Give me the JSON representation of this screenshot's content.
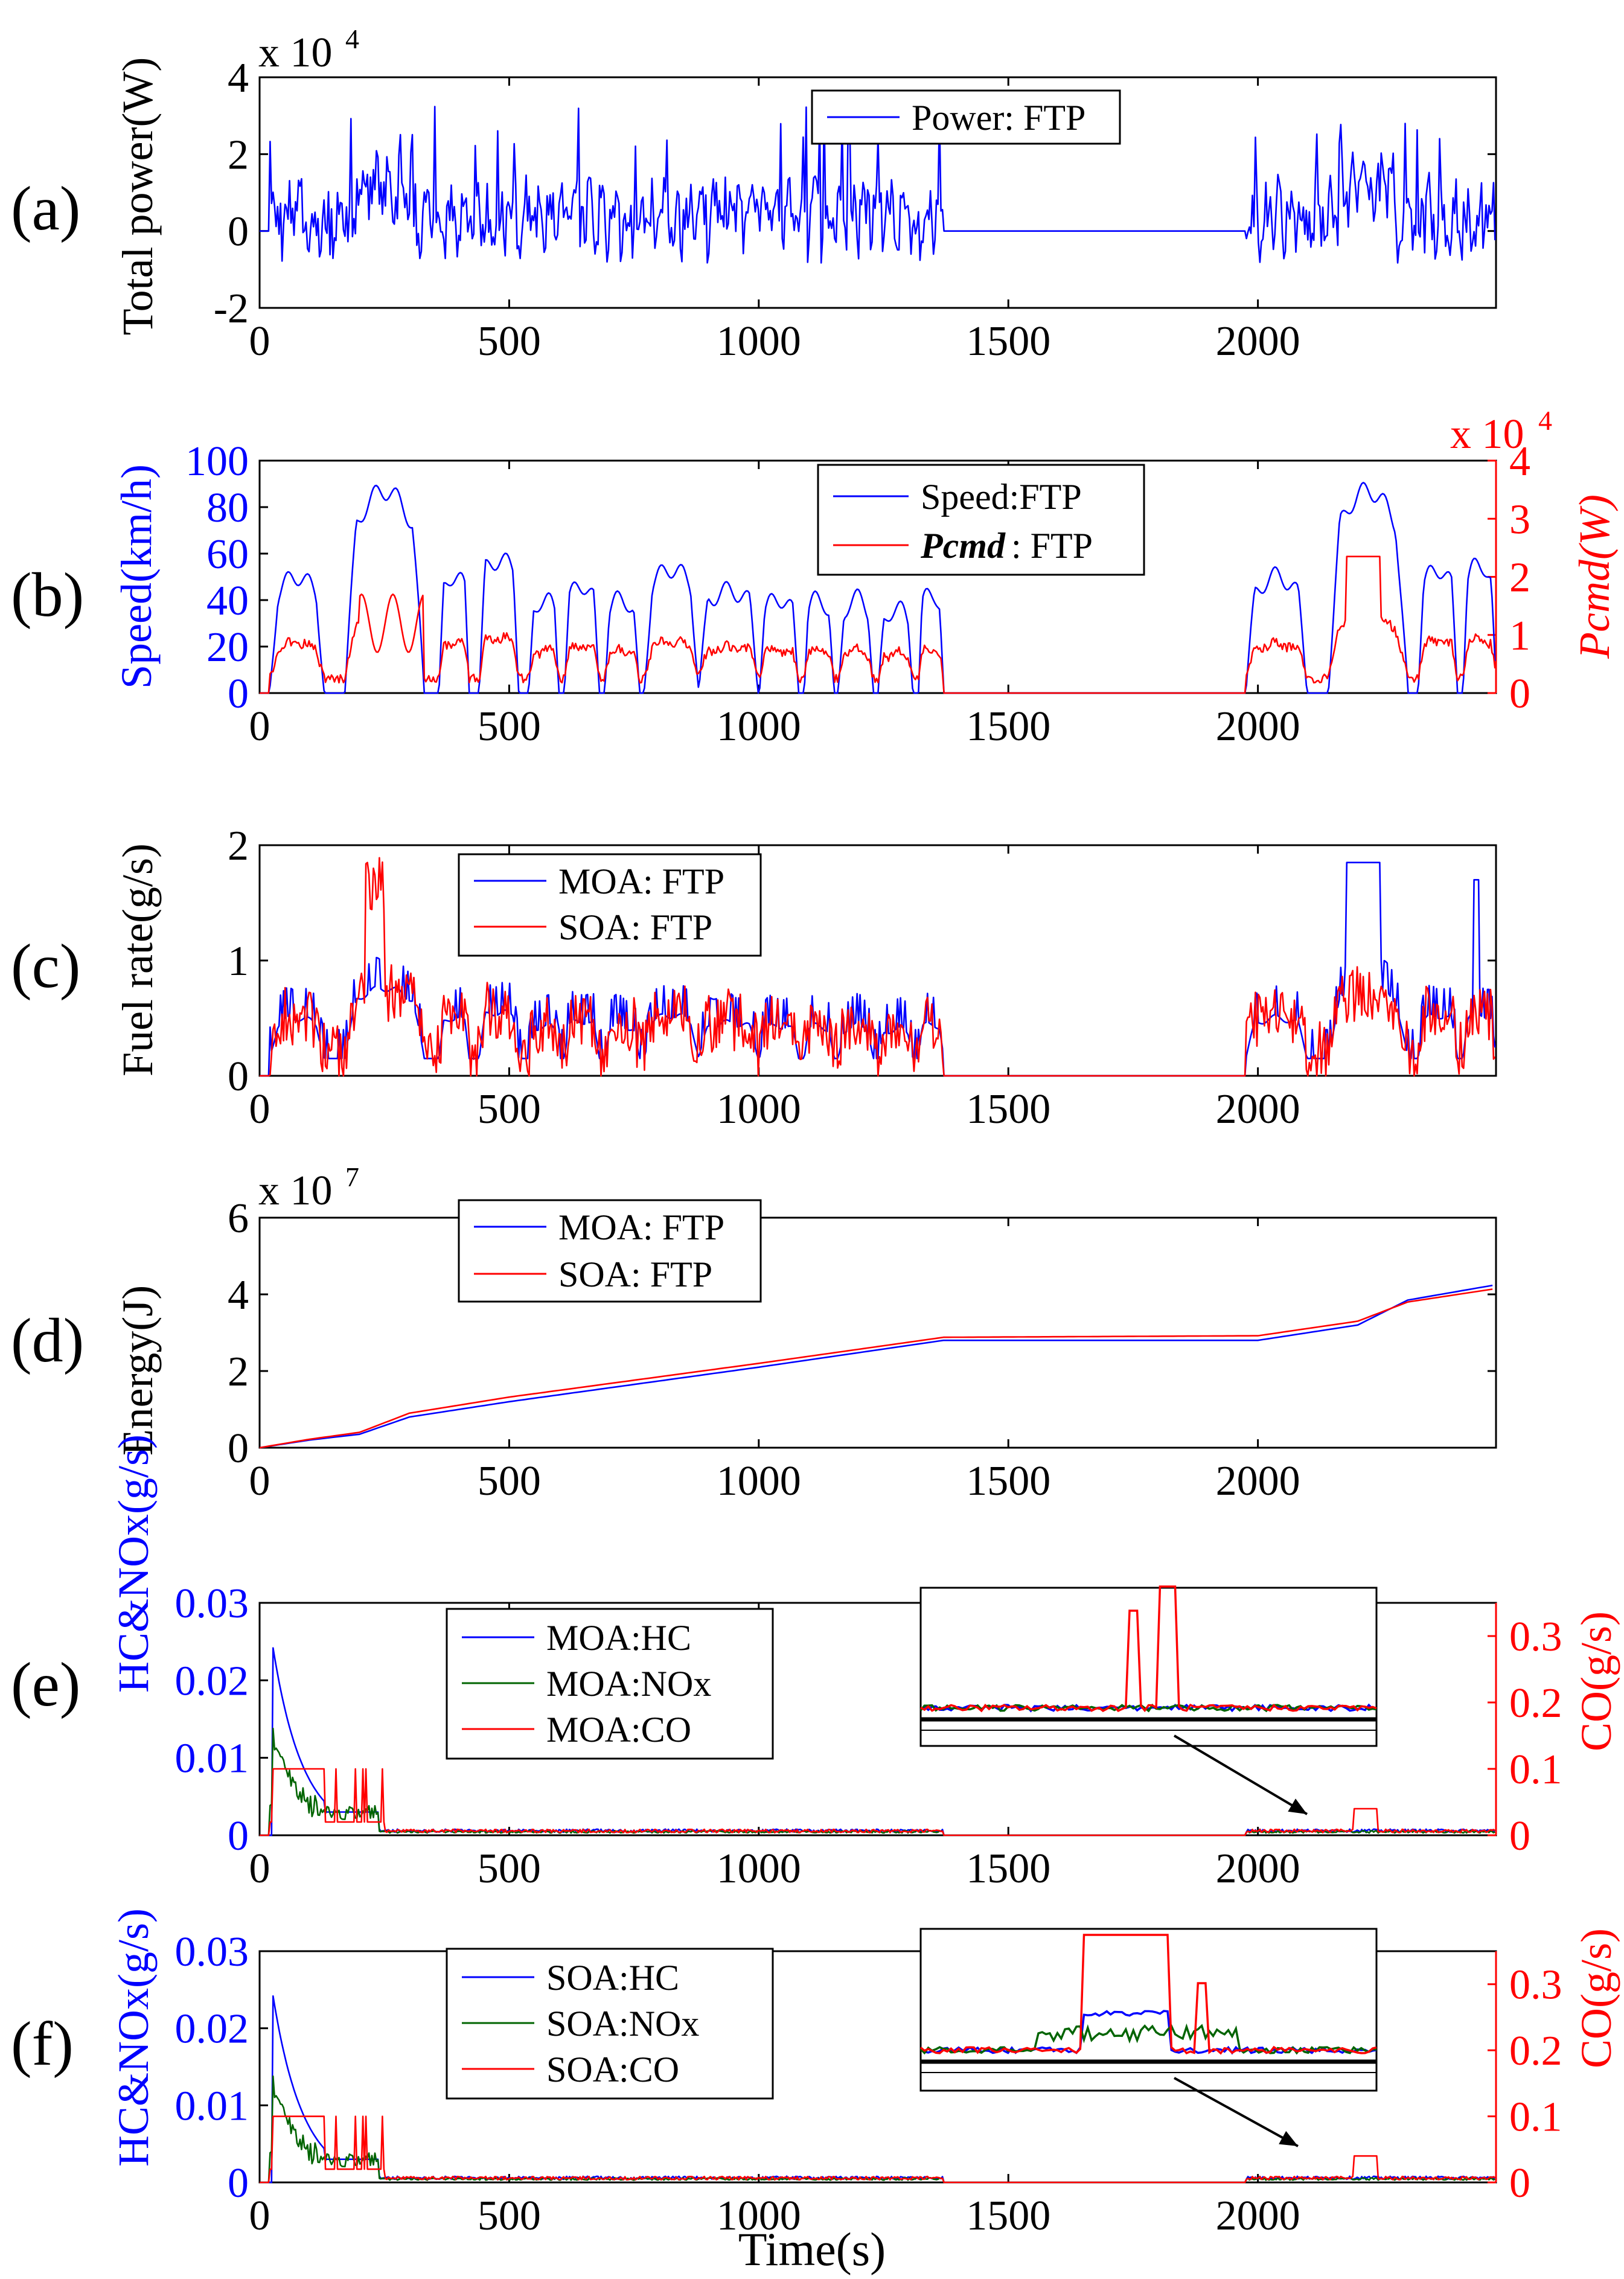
{
  "chart_data": [
    {
      "id": "a",
      "type": "line",
      "panel_label": "(a)",
      "ylabel": "Total power(W)",
      "y_multiplier": "x 10",
      "y_multiplier_exp": "4",
      "xlim": [
        0,
        2477
      ],
      "ylim": [
        -2,
        4
      ],
      "yticks": [
        -2,
        0,
        2,
        4
      ],
      "xticks": [
        0,
        500,
        1000,
        1500,
        2000
      ],
      "legend": [
        "Power: FTP"
      ],
      "series": [
        {
          "name": "Power: FTP",
          "color": "#0000ff",
          "axis": "left",
          "kind": "power"
        }
      ]
    },
    {
      "id": "b",
      "type": "line",
      "panel_label": "(b)",
      "ylabel": "Speed(km/h)",
      "y2label": "Pcmd(W)",
      "y2_multiplier": "x 10",
      "y2_multiplier_exp": "4",
      "xlim": [
        0,
        2477
      ],
      "ylim": [
        0,
        100
      ],
      "y2lim": [
        0,
        4
      ],
      "yticks": [
        0,
        20,
        40,
        60,
        80,
        100
      ],
      "y2ticks": [
        0,
        1,
        2,
        3,
        4
      ],
      "xticks": [
        0,
        500,
        1000,
        1500,
        2000
      ],
      "legend": [
        "Speed:FTP",
        "Pcmd : FTP"
      ],
      "legend_parts": {
        "speed": "Speed:FTP",
        "pcmd_name": "Pcmd",
        "pcmd_rest": ": FTP"
      },
      "series": [
        {
          "name": "Speed:FTP",
          "color": "#0000ff",
          "axis": "left",
          "kind": "speed"
        },
        {
          "name": "Pcmd : FTP",
          "color": "#ff0000",
          "axis": "right",
          "kind": "pcmd"
        }
      ]
    },
    {
      "id": "c",
      "type": "line",
      "panel_label": "(c)",
      "ylabel": "Fuel rate(g/s)",
      "xlim": [
        0,
        2477
      ],
      "ylim": [
        0,
        2
      ],
      "yticks": [
        0,
        1,
        2
      ],
      "xticks": [
        0,
        500,
        1000,
        1500,
        2000
      ],
      "legend": [
        "MOA: FTP",
        "SOA: FTP"
      ],
      "series": [
        {
          "name": "MOA: FTP",
          "color": "#0000ff",
          "axis": "left",
          "kind": "fuel_moa"
        },
        {
          "name": "SOA: FTP",
          "color": "#ff0000",
          "axis": "left",
          "kind": "fuel_soa"
        }
      ]
    },
    {
      "id": "d",
      "type": "line",
      "panel_label": "(d)",
      "ylabel": "Energy(J)",
      "y_multiplier": "x 10",
      "y_multiplier_exp": "7",
      "xlim": [
        0,
        2477
      ],
      "ylim": [
        0,
        6
      ],
      "yticks": [
        0,
        2,
        4,
        6
      ],
      "xticks": [
        0,
        500,
        1000,
        1500,
        2000
      ],
      "legend": [
        "MOA: FTP",
        "SOA: FTP"
      ],
      "series": [
        {
          "name": "MOA: FTP",
          "color": "#0000ff",
          "axis": "left",
          "x": [
            0,
            100,
            200,
            300,
            500,
            1000,
            1370,
            2000,
            2200,
            2300,
            2477
          ],
          "y": [
            0,
            0.2,
            0.35,
            0.8,
            1.2,
            2.1,
            2.8,
            2.8,
            3.2,
            3.85,
            4.25
          ]
        },
        {
          "name": "SOA: FTP",
          "color": "#ff0000",
          "axis": "left",
          "x": [
            0,
            100,
            200,
            300,
            500,
            1000,
            1370,
            2000,
            2200,
            2300,
            2477
          ],
          "y": [
            0,
            0.22,
            0.4,
            0.9,
            1.32,
            2.2,
            2.88,
            2.92,
            3.3,
            3.8,
            4.15
          ]
        }
      ]
    },
    {
      "id": "e",
      "type": "line",
      "panel_label": "(e)",
      "ylabel": "HC&NOx(g/s)",
      "y2label": "CO(g/s)",
      "xlim": [
        0,
        2477
      ],
      "ylim": [
        0,
        0.03
      ],
      "y2lim": [
        0,
        0.35
      ],
      "yticks": [
        0,
        0.01,
        0.02,
        0.03
      ],
      "ytick_labels": [
        "0",
        "0.01",
        "0.02",
        "0.03"
      ],
      "y2ticks": [
        0,
        0.1,
        0.2,
        0.3
      ],
      "y2tick_labels": [
        "0",
        "0.1",
        "0.2",
        "0.3"
      ],
      "xticks": [
        0,
        500,
        1000,
        1500,
        2000
      ],
      "legend": [
        "MOA:HC",
        "MOA:NOx",
        "MOA:CO"
      ],
      "inset": "zoom of 2050-2300 s",
      "series": [
        {
          "name": "MOA:HC",
          "color": "#0000ff",
          "axis": "left",
          "kind": "hc"
        },
        {
          "name": "MOA:NOx",
          "color": "#006400",
          "axis": "left",
          "kind": "nox"
        },
        {
          "name": "MOA:CO",
          "color": "#ff0000",
          "axis": "right",
          "kind": "co"
        }
      ]
    },
    {
      "id": "f",
      "type": "line",
      "panel_label": "(f)",
      "ylabel": "HC&NOx(g/s)",
      "y2label": "CO(g/s)",
      "xlabel": "Time(s)",
      "xlim": [
        0,
        2477
      ],
      "ylim": [
        0,
        0.03
      ],
      "y2lim": [
        0,
        0.35
      ],
      "yticks": [
        0,
        0.01,
        0.02,
        0.03
      ],
      "ytick_labels": [
        "0",
        "0.01",
        "0.02",
        "0.03"
      ],
      "y2ticks": [
        0,
        0.1,
        0.2,
        0.3
      ],
      "y2tick_labels": [
        "0",
        "0.1",
        "0.2",
        "0.3"
      ],
      "xticks": [
        0,
        500,
        1000,
        1500,
        2000
      ],
      "legend": [
        "SOA:HC",
        "SOA:NOx",
        "SOA:CO"
      ],
      "inset": "zoom of 2050-2300 s",
      "series": [
        {
          "name": "SOA:HC",
          "color": "#0000ff",
          "axis": "left",
          "kind": "hc"
        },
        {
          "name": "SOA:NOx",
          "color": "#006400",
          "axis": "left",
          "kind": "nox"
        },
        {
          "name": "SOA:CO",
          "color": "#ff0000",
          "axis": "right",
          "kind": "co"
        }
      ]
    }
  ]
}
